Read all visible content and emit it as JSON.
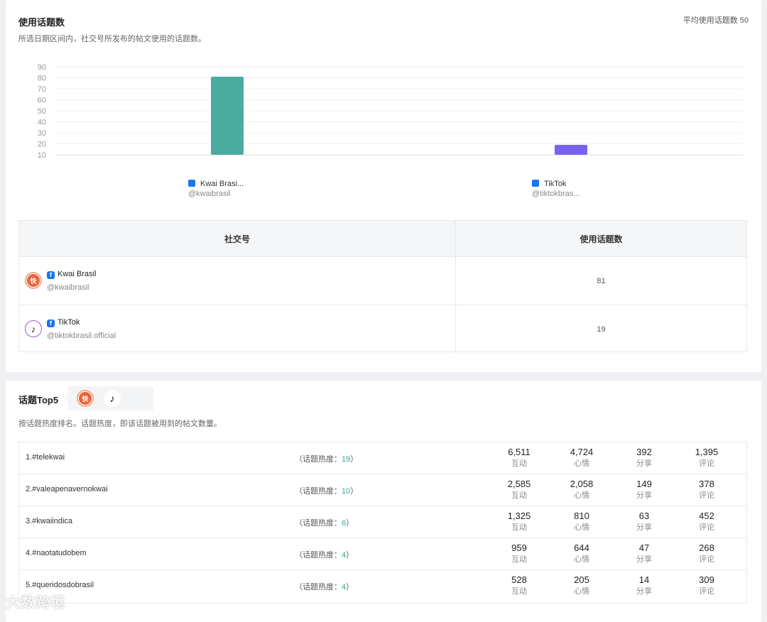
{
  "hashtag_usage": {
    "title": "使用话题数",
    "subtitle": "所选日期区间内，社交号所发布的帖文使用的话题数。",
    "average_label": "平均使用话题数 50"
  },
  "chart_data": {
    "type": "bar",
    "categories": [
      "Kwai Brasi...",
      "TikTok"
    ],
    "handles": [
      "@kwaibrasil",
      "@tiktokbras..."
    ],
    "values": [
      81,
      19
    ],
    "colors": [
      "#4aab9f",
      "#7b61f0"
    ],
    "yticks": [
      10,
      20,
      30,
      40,
      50,
      60,
      70,
      80,
      90
    ],
    "ylim": [
      10,
      90
    ],
    "grid": true
  },
  "accounts_table": {
    "headers": [
      "社交号",
      "使用话题数"
    ],
    "rows": [
      {
        "name": "Kwai Brasil",
        "handle": "@kwaibrasil",
        "value": "81",
        "avatar_icon": "kwai-logo-icon"
      },
      {
        "name": "TikTok",
        "handle": "@tiktokbrasil.official",
        "value": "19",
        "avatar_icon": "tiktok-logo-icon"
      }
    ]
  },
  "top5": {
    "title": "话题Top5",
    "subtitle": "按话题热度排名。话题热度，即该话题被用到的帖文数量。",
    "heat_prefix": "（话题热度：",
    "heat_suffix": "）",
    "metric_labels": [
      "互动",
      "心情",
      "分享",
      "评论"
    ],
    "rows": [
      {
        "name": "1.#telekwai",
        "heat": "19",
        "metrics": [
          "6,511",
          "4,724",
          "392",
          "1,395"
        ]
      },
      {
        "name": "2.#valeapenavernokwai",
        "heat": "10",
        "metrics": [
          "2,585",
          "2,058",
          "149",
          "378"
        ]
      },
      {
        "name": "3.#kwaiindica",
        "heat": "6",
        "metrics": [
          "1,325",
          "810",
          "63",
          "452"
        ]
      },
      {
        "name": "4.#naotatudobem",
        "heat": "4",
        "metrics": [
          "959",
          "644",
          "47",
          "268"
        ]
      },
      {
        "name": "5.#queridosdobrasil",
        "heat": "4",
        "metrics": [
          "528",
          "205",
          "14",
          "309"
        ]
      }
    ]
  },
  "watermark": "大数跨境"
}
